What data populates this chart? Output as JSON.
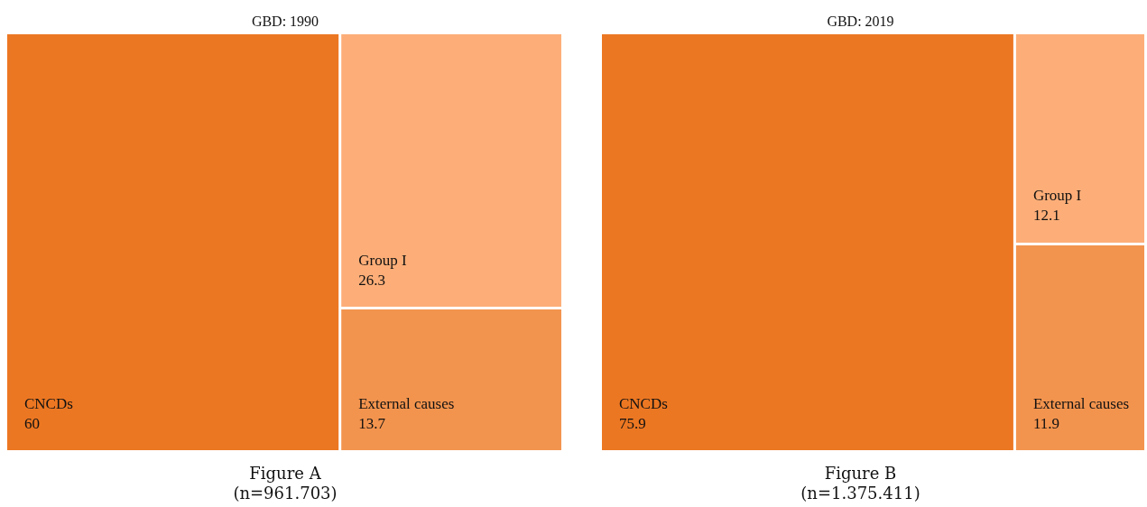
{
  "chart_data": [
    {
      "type": "other",
      "title": "GBD: 1990",
      "categories": [
        "CNCDs",
        "Group I",
        "External causes"
      ],
      "values": [
        60,
        26.3,
        13.7
      ],
      "colors": [
        "#ec7722",
        "#fdae78",
        "#f3944e"
      ],
      "data_labels": true,
      "annotations": [
        "Figure A",
        "(n=961.703)"
      ]
    },
    {
      "type": "other",
      "title": "GBD: 2019",
      "categories": [
        "CNCDs",
        "Group I",
        "External causes"
      ],
      "values": [
        75.9,
        12.1,
        11.9
      ],
      "colors": [
        "#ec7722",
        "#fdae78",
        "#f3944e"
      ],
      "data_labels": true,
      "annotations": [
        "Figure B",
        "(n=1.375.411)"
      ]
    }
  ]
}
